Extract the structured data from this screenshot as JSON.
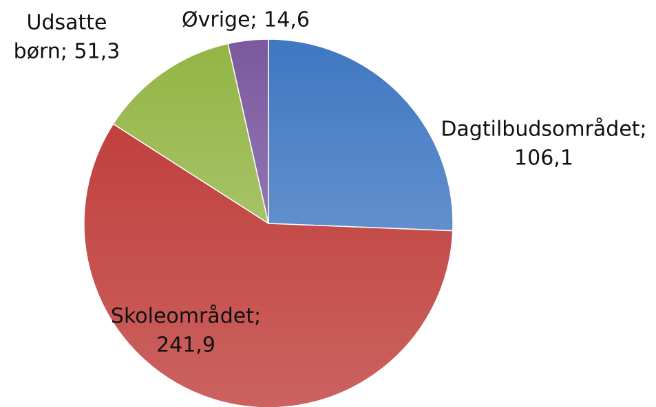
{
  "chart_data": {
    "type": "pie",
    "values": [
      106.1,
      241.9,
      51.3,
      14.6
    ],
    "value_labels": [
      [
        "Dagtilbudsområdet;",
        "106,1"
      ],
      [
        "Skoleområdet;",
        "241,9"
      ],
      [
        "Udsatte",
        "børn; 51,3"
      ],
      [
        "Øvrige; 14,6"
      ]
    ],
    "colors": [
      "#3f77c2",
      "#c0403d",
      "#93b545",
      "#7b589f"
    ]
  }
}
